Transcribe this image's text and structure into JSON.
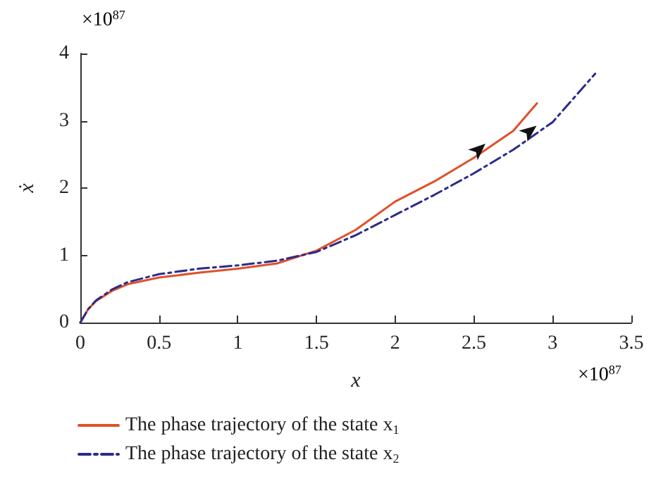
{
  "chart_data": {
    "type": "line",
    "xlabel": "x",
    "ylabel": "ẋ",
    "annotations": [
      "×10$^{87}$",
      "×10$^{87}$"
    ],
    "xlim": [
      0,
      3.5
    ],
    "xticks": [
      0,
      0.5,
      1,
      1.5,
      2,
      2.5,
      3,
      3.5
    ],
    "ylim": [
      0,
      4
    ],
    "yticks": [
      0,
      1,
      2,
      3,
      4
    ],
    "grid": false,
    "legend": "bottom",
    "marker": "none",
    "series": [
      {
        "name": "The phase trajectory of the state x$_{1}$",
        "color": "#e0502a",
        "line_style": "solid",
        "x": [
          0,
          0.05,
          0.1,
          0.2,
          0.3,
          0.5,
          0.75,
          1,
          1.25,
          1.5,
          1.75,
          2,
          2.25,
          2.5,
          2.75,
          2.9
        ],
        "values": [
          0,
          0.2,
          0.32,
          0.47,
          0.57,
          0.67,
          0.74,
          0.8,
          0.88,
          1.07,
          1.38,
          1.8,
          2.1,
          2.45,
          2.85,
          3.26
        ]
      },
      {
        "name": "The phase trajectory of the state x$_{2}$",
        "color": "#2b2b8c",
        "line_style": "dashed",
        "x": [
          0,
          0.05,
          0.1,
          0.2,
          0.3,
          0.5,
          0.75,
          1,
          1.25,
          1.5,
          1.75,
          2,
          2.25,
          2.5,
          2.75,
          3,
          3.27
        ],
        "values": [
          0,
          0.2,
          0.33,
          0.49,
          0.6,
          0.72,
          0.8,
          0.85,
          0.92,
          1.05,
          1.3,
          1.6,
          1.9,
          2.22,
          2.57,
          2.98,
          3.7
        ]
      }
    ]
  }
}
